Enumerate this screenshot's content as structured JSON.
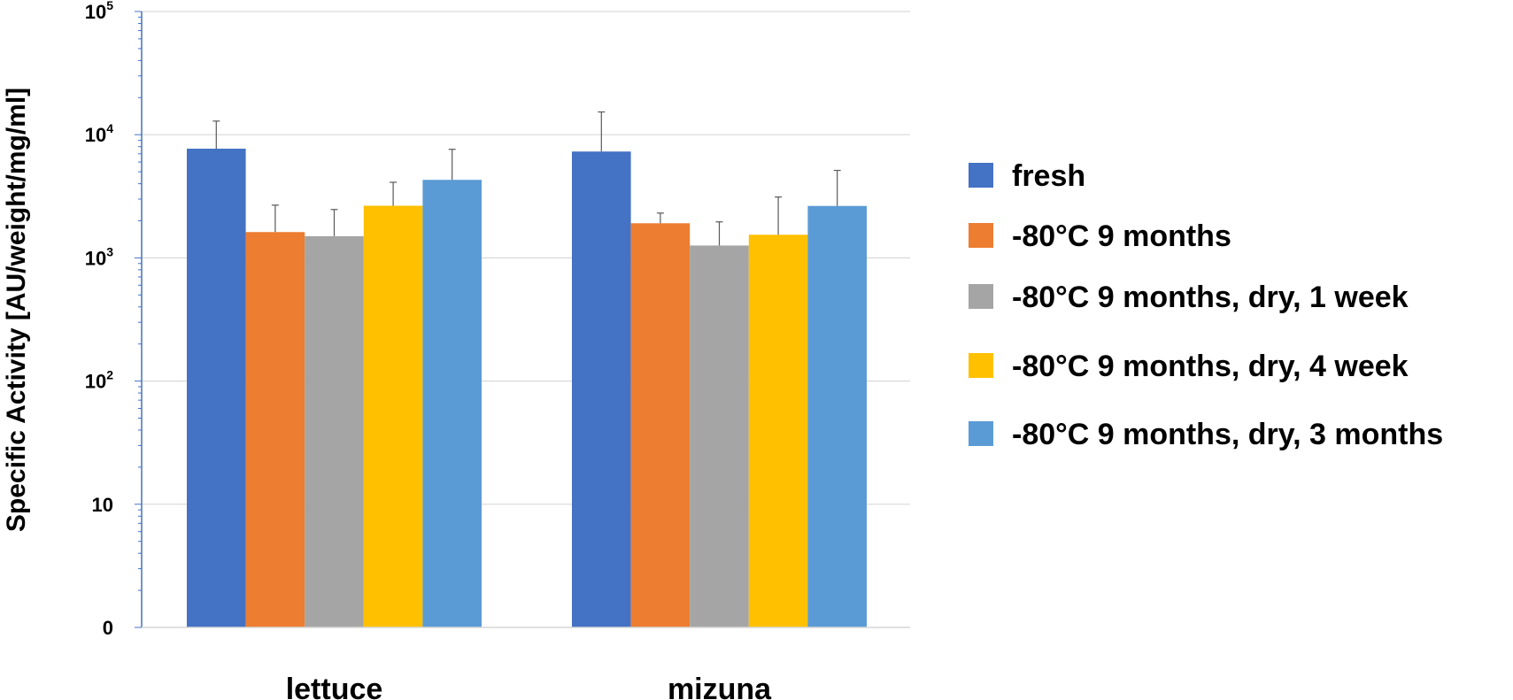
{
  "chart_data": {
    "type": "bar",
    "ylabel": "Specific Activity [AU/weight/mg/ml]",
    "xlabel": "",
    "yscale": "log",
    "ylim": [
      1,
      100000
    ],
    "yticks": [
      {
        "value": 1,
        "base": "0",
        "exp": ""
      },
      {
        "value": 10,
        "base": "10",
        "exp": ""
      },
      {
        "value": 100,
        "base": "10",
        "exp": "2"
      },
      {
        "value": 1000,
        "base": "10",
        "exp": "3"
      },
      {
        "value": 10000,
        "base": "10",
        "exp": "4"
      },
      {
        "value": 100000,
        "base": "10",
        "exp": "5"
      }
    ],
    "grid": true,
    "legend_position": "right",
    "categories": [
      "lettuce",
      "mizuna"
    ],
    "series": [
      {
        "name": "fresh",
        "color": "#4472C4",
        "values": [
          7700,
          7300
        ],
        "error_upper": [
          12900,
          15300
        ]
      },
      {
        "name": "-80°C 9 months",
        "color": "#ED7D31",
        "values": [
          1620,
          1910
        ],
        "error_upper": [
          2680,
          2310
        ]
      },
      {
        "name": "-80°C 9 months, dry, 1 week",
        "color": "#A5A5A5",
        "values": [
          1500,
          1260
        ],
        "error_upper": [
          2470,
          1960
        ]
      },
      {
        "name": "-80°C 9 months, dry, 4 week",
        "color": "#FFC000",
        "values": [
          2650,
          1540
        ],
        "error_upper": [
          4110,
          3120
        ]
      },
      {
        "name": "-80°C 9 months, dry, 3 months",
        "color": "#5B9BD5",
        "values": [
          4300,
          2640
        ],
        "error_upper": [
          7610,
          5130
        ]
      }
    ]
  }
}
